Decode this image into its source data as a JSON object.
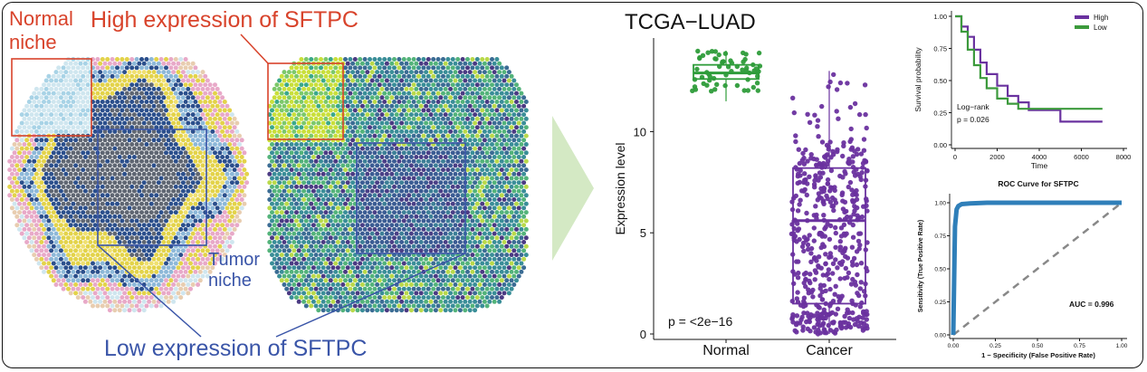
{
  "annotations": {
    "normal_niche": "Normal\nniche",
    "normal_niche_l1": "Normal",
    "normal_niche_l2": "niche",
    "high_expr": "High expression of SFTPC",
    "tumor_niche_l1": "Tumor",
    "tumor_niche_l2": "niche",
    "low_expr": "Low expression of SFTPC"
  },
  "colors": {
    "red": "#d8432b",
    "blue": "#3a55a8",
    "arrow": "#d4e9c4",
    "normal_green": "#2e9c3a",
    "cancer_purple": "#6a329f",
    "roc_blue": "#2f7fb9",
    "km_high": "#6a329f",
    "km_low": "#3c9a3c"
  },
  "chart_data": [
    {
      "type": "box",
      "title": "TCGA−LUAD",
      "xlabel": "",
      "ylabel": "Expression level",
      "categories": [
        "Normal",
        "Cancer"
      ],
      "ylim": [
        0,
        14
      ],
      "yticks": [
        0,
        5,
        10
      ],
      "boxes": [
        {
          "name": "Normal",
          "min": 11.5,
          "q1": 12.6,
          "median": 12.9,
          "q3": 13.3,
          "max": 14.0
        },
        {
          "name": "Cancer",
          "min": 0.0,
          "q1": 1.5,
          "median": 5.6,
          "q3": 8.2,
          "max": 13.0
        }
      ],
      "annotation": "p = <2e−16"
    },
    {
      "type": "line",
      "title": "",
      "xlabel": "Time",
      "ylabel": "Survival probability",
      "xlim": [
        0,
        8000
      ],
      "ylim": [
        0,
        1
      ],
      "xticks": [
        0,
        2000,
        4000,
        6000,
        8000
      ],
      "yticks": [
        "0.00",
        "0.25",
        "0.50",
        "0.75",
        "1.00"
      ],
      "legend": "top-right",
      "series": [
        {
          "name": "High",
          "x": [
            0,
            300,
            600,
            900,
            1200,
            1500,
            2000,
            2500,
            3000,
            3500,
            5000,
            7000
          ],
          "y": [
            1.0,
            0.92,
            0.84,
            0.74,
            0.64,
            0.55,
            0.46,
            0.38,
            0.33,
            0.27,
            0.18,
            0.18
          ]
        },
        {
          "name": "Low",
          "x": [
            0,
            300,
            600,
            900,
            1200,
            1500,
            2000,
            2500,
            3000,
            5000,
            7000
          ],
          "y": [
            1.0,
            0.88,
            0.74,
            0.62,
            0.52,
            0.44,
            0.36,
            0.32,
            0.28,
            0.28,
            0.28
          ]
        }
      ],
      "annotation_l1": "Log−rank",
      "annotation_l2": "p = 0.026"
    },
    {
      "type": "line",
      "title": "ROC Curve for SFTPC",
      "xlabel": "1 − Specificity (False Positive Rate)",
      "ylabel": "Sensitivity (True Positive Rate)",
      "xlim": [
        0,
        1
      ],
      "ylim": [
        0,
        1
      ],
      "xticks": [
        "0.00",
        "0.25",
        "0.50",
        "0.75",
        "1.00"
      ],
      "yticks": [
        "0.00",
        "0.25",
        "0.50",
        "0.75",
        "1.00"
      ],
      "series": [
        {
          "name": "",
          "x": [
            0,
            0.01,
            0.02,
            0.03,
            0.05,
            0.1,
            0.2,
            0.5,
            1.0
          ],
          "y": [
            0,
            0.82,
            0.95,
            0.975,
            0.99,
            0.995,
            1.0,
            1.0,
            1.0
          ]
        }
      ],
      "annotation": "AUC = 0.996"
    }
  ]
}
